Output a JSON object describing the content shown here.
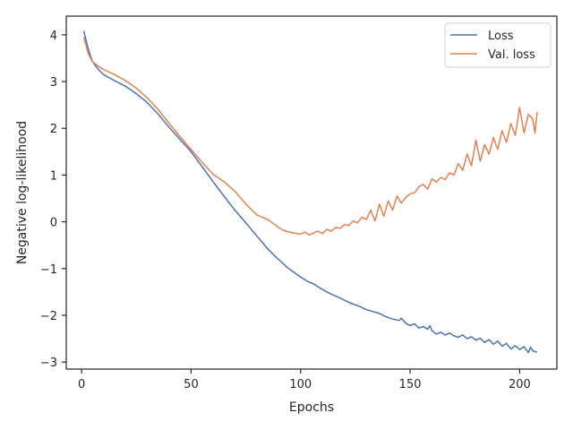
{
  "chart_data": {
    "type": "line",
    "xlabel": "Epochs",
    "ylabel": "Negative log-likelihood",
    "xlim": [
      -7,
      217
    ],
    "ylim": [
      -3.15,
      4.4
    ],
    "xticks": [
      0,
      50,
      100,
      150,
      200
    ],
    "yticks": [
      -3,
      -2,
      -1,
      0,
      1,
      2,
      3,
      4
    ],
    "grid": false,
    "legend_position": "top-right",
    "series": [
      {
        "name": "Loss",
        "color": "#4c72b0",
        "x": [
          1,
          3,
          5,
          8,
          10,
          15,
          20,
          25,
          30,
          35,
          40,
          45,
          50,
          55,
          60,
          65,
          70,
          75,
          80,
          85,
          88,
          91,
          94,
          97,
          100,
          103,
          106,
          109,
          112,
          115,
          118,
          121,
          124,
          127,
          130,
          133,
          136,
          139,
          142,
          145,
          146,
          148,
          150,
          152,
          154,
          156,
          158,
          159,
          160,
          162,
          164,
          166,
          168,
          170,
          172,
          174,
          176,
          178,
          180,
          182,
          184,
          186,
          188,
          190,
          192,
          194,
          196,
          198,
          200,
          202,
          204,
          205,
          206,
          208
        ],
        "y": [
          4.08,
          3.7,
          3.42,
          3.24,
          3.15,
          3.02,
          2.9,
          2.74,
          2.55,
          2.3,
          2.02,
          1.76,
          1.5,
          1.18,
          0.86,
          0.55,
          0.25,
          -0.02,
          -0.3,
          -0.58,
          -0.72,
          -0.85,
          -0.98,
          -1.08,
          -1.18,
          -1.27,
          -1.33,
          -1.42,
          -1.5,
          -1.57,
          -1.63,
          -1.7,
          -1.76,
          -1.81,
          -1.88,
          -1.92,
          -1.96,
          -2.03,
          -2.08,
          -2.11,
          -2.06,
          -2.17,
          -2.22,
          -2.18,
          -2.27,
          -2.24,
          -2.3,
          -2.22,
          -2.33,
          -2.4,
          -2.36,
          -2.42,
          -2.38,
          -2.44,
          -2.47,
          -2.42,
          -2.5,
          -2.46,
          -2.53,
          -2.49,
          -2.58,
          -2.52,
          -2.62,
          -2.55,
          -2.66,
          -2.6,
          -2.72,
          -2.65,
          -2.73,
          -2.67,
          -2.8,
          -2.68,
          -2.76,
          -2.79
        ]
      },
      {
        "name": "Val. loss",
        "color": "#dd8452",
        "x": [
          1,
          3,
          5,
          8,
          10,
          15,
          20,
          25,
          30,
          35,
          40,
          45,
          50,
          55,
          60,
          65,
          70,
          75,
          80,
          85,
          88,
          90,
          92,
          95,
          98,
          100,
          102,
          104,
          106,
          108,
          110,
          112,
          114,
          116,
          118,
          120,
          122,
          124,
          126,
          128,
          130,
          132,
          134,
          136,
          138,
          140,
          142,
          144,
          146,
          148,
          150,
          152,
          154,
          156,
          158,
          160,
          162,
          164,
          166,
          168,
          170,
          172,
          174,
          176,
          178,
          180,
          182,
          184,
          186,
          188,
          190,
          192,
          194,
          196,
          198,
          200,
          202,
          204,
          206,
          207,
          208
        ],
        "y": [
          3.95,
          3.6,
          3.42,
          3.32,
          3.26,
          3.15,
          3.02,
          2.86,
          2.65,
          2.4,
          2.1,
          1.82,
          1.55,
          1.27,
          1.02,
          0.86,
          0.65,
          0.38,
          0.15,
          0.05,
          -0.05,
          -0.12,
          -0.18,
          -0.22,
          -0.25,
          -0.26,
          -0.22,
          -0.28,
          -0.24,
          -0.2,
          -0.25,
          -0.16,
          -0.2,
          -0.12,
          -0.14,
          -0.06,
          -0.08,
          0.02,
          -0.02,
          0.1,
          0.05,
          0.25,
          0.02,
          0.38,
          0.12,
          0.45,
          0.25,
          0.55,
          0.4,
          0.52,
          0.6,
          0.62,
          0.75,
          0.8,
          0.7,
          0.92,
          0.85,
          0.95,
          0.9,
          1.05,
          1.0,
          1.25,
          1.1,
          1.45,
          1.2,
          1.75,
          1.3,
          1.65,
          1.45,
          1.8,
          1.55,
          1.95,
          1.7,
          2.1,
          1.85,
          2.45,
          1.9,
          2.3,
          2.2,
          1.9,
          2.35
        ]
      }
    ]
  }
}
